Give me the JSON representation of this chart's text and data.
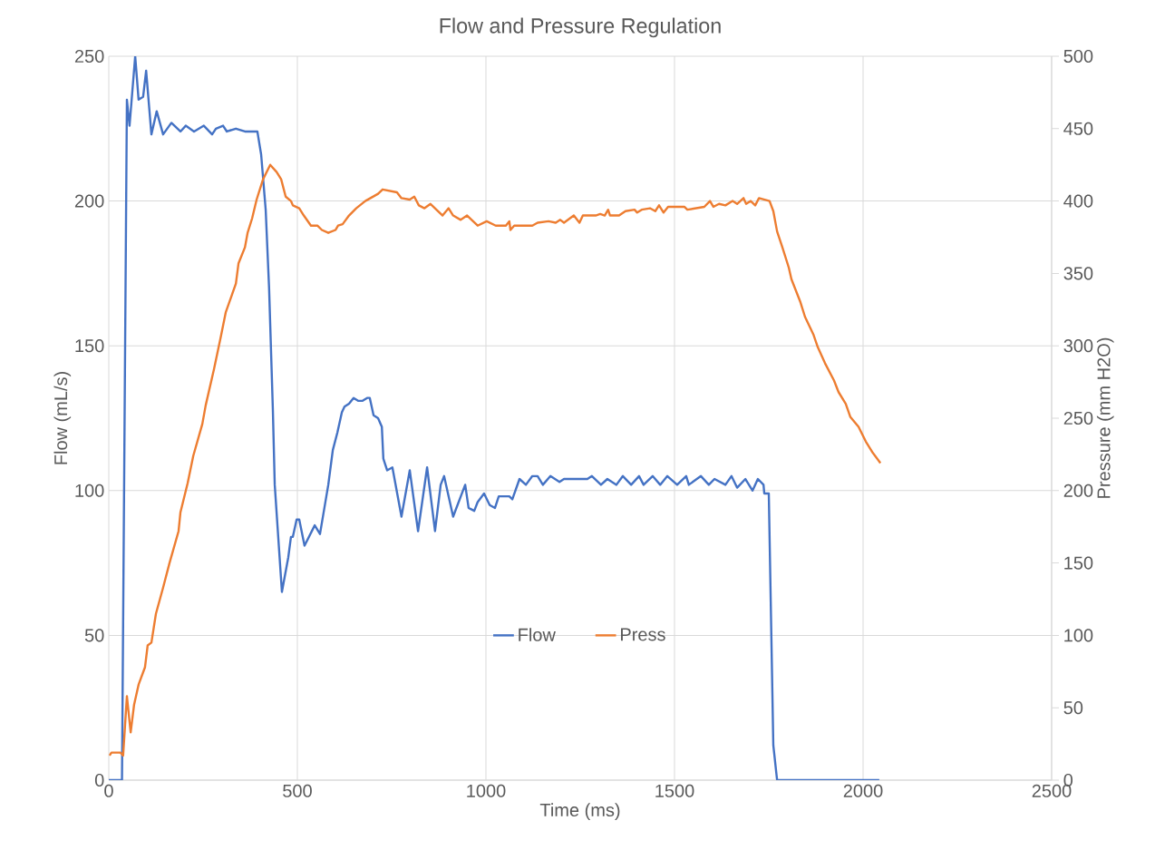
{
  "chart_data": {
    "type": "line",
    "title": "Flow and Pressure Regulation",
    "xlabel": "Time (ms)",
    "ylabel": "Flow (mL/s)",
    "y2label": "Pressure (mm H2O)",
    "xlim": [
      0,
      2500
    ],
    "xticks": [
      0,
      500,
      1000,
      1500,
      2000,
      2500
    ],
    "ylim": [
      0,
      250
    ],
    "yticks": [
      0,
      50,
      100,
      150,
      200,
      250
    ],
    "y2lim": [
      0,
      500
    ],
    "y2ticks": [
      0,
      50,
      100,
      150,
      200,
      250,
      300,
      350,
      400,
      450,
      500
    ],
    "grid": true,
    "legend": "bottom",
    "marker": "none",
    "line_style": "solid",
    "series": [
      {
        "name": "Flow",
        "color": "#4472c4",
        "axis": "y",
        "x": [
          0,
          35,
          48,
          55,
          70,
          79,
          91,
          99,
          113,
          127,
          144,
          166,
          190,
          204,
          226,
          252,
          274,
          284,
          303,
          313,
          337,
          361,
          394,
          404,
          416,
          425,
          435,
          440,
          459,
          476,
          483,
          488,
          498,
          505,
          519,
          546,
          560,
          582,
          594,
          606,
          618,
          625,
          637,
          649,
          661,
          673,
          685,
          692,
          702,
          714,
          724,
          728,
          738,
          752,
          776,
          798,
          820,
          844,
          865,
          880,
          889,
          913,
          945,
          954,
          969,
          978,
          995,
          1010,
          1024,
          1034,
          1062,
          1070,
          1089,
          1106,
          1123,
          1137,
          1151,
          1171,
          1195,
          1207,
          1269,
          1281,
          1305,
          1322,
          1346,
          1363,
          1385,
          1406,
          1418,
          1442,
          1462,
          1481,
          1507,
          1531,
          1538,
          1570,
          1591,
          1606,
          1635,
          1651,
          1666,
          1688,
          1707,
          1721,
          1736,
          1738,
          1750,
          1762,
          1772,
          2043
        ],
        "values": [
          0,
          0,
          235,
          226,
          250,
          235,
          236,
          245,
          223,
          231,
          223,
          227,
          224,
          226,
          224,
          226,
          223,
          225,
          226,
          224,
          225,
          224,
          224,
          216,
          197,
          170,
          128,
          102,
          65,
          77,
          84,
          84,
          90,
          90,
          81,
          88,
          85,
          102,
          114,
          120,
          127,
          129,
          130,
          132,
          131,
          131,
          132,
          132,
          126,
          125,
          122,
          111,
          107,
          108,
          91,
          107,
          86,
          108,
          86,
          102,
          105,
          91,
          102,
          94,
          93,
          96,
          99,
          95,
          94,
          98,
          98,
          97,
          104,
          102,
          105,
          105,
          102,
          105,
          103,
          104,
          104,
          105,
          102,
          104,
          102,
          105,
          102,
          105,
          102,
          105,
          102,
          105,
          102,
          105,
          102,
          105,
          102,
          104,
          102,
          105,
          101,
          104,
          100,
          104,
          102,
          99,
          99,
          12,
          0,
          0
        ]
      },
      {
        "name": "Press",
        "color": "#ed7d31",
        "axis": "y2",
        "x": [
          2,
          7,
          31,
          38,
          48,
          58,
          67,
          79,
          96,
          103,
          113,
          125,
          144,
          161,
          185,
          190,
          209,
          224,
          248,
          257,
          279,
          296,
          310,
          337,
          344,
          361,
          368,
          380,
          392,
          409,
          428,
          445,
          457,
          469,
          483,
          488,
          505,
          517,
          536,
          553,
          565,
          582,
          601,
          608,
          620,
          637,
          656,
          680,
          714,
          726,
          764,
          776,
          798,
          810,
          822,
          837,
          853,
          885,
          901,
          913,
          933,
          950,
          978,
          1002,
          1026,
          1053,
          1062,
          1065,
          1075,
          1123,
          1137,
          1166,
          1185,
          1197,
          1207,
          1233,
          1248,
          1257,
          1291,
          1303,
          1315,
          1324,
          1329,
          1346,
          1353,
          1370,
          1394,
          1401,
          1413,
          1435,
          1449,
          1459,
          1471,
          1483,
          1526,
          1534,
          1579,
          1594,
          1603,
          1618,
          1635,
          1654,
          1666,
          1683,
          1690,
          1702,
          1714,
          1724,
          1752,
          1762,
          1772,
          1786,
          1803,
          1810,
          1834,
          1846,
          1868,
          1880,
          1899,
          1923,
          1935,
          1954,
          1966,
          1988,
          2007,
          2026,
          2046
        ],
        "values": [
          17,
          19,
          19,
          17,
          58,
          33,
          52,
          66,
          78,
          93,
          95,
          115,
          133,
          150,
          172,
          185,
          205,
          224,
          246,
          259,
          284,
          305,
          323,
          343,
          357,
          368,
          378,
          388,
          401,
          415,
          425,
          420,
          415,
          403,
          400,
          397,
          395,
          390,
          383,
          383,
          380,
          378,
          380,
          383,
          384,
          390,
          395,
          400,
          405,
          408,
          406,
          402,
          401,
          403,
          397,
          395,
          398,
          390,
          395,
          390,
          387,
          390,
          383,
          386,
          383,
          383,
          386,
          380,
          383,
          383,
          385,
          386,
          385,
          387,
          385,
          390,
          385,
          390,
          390,
          391,
          390,
          394,
          390,
          390,
          390,
          393,
          394,
          392,
          394,
          395,
          393,
          397,
          392,
          396,
          396,
          394,
          396,
          400,
          396,
          398,
          397,
          400,
          398,
          402,
          398,
          400,
          397,
          402,
          400,
          393,
          379,
          368,
          354,
          346,
          330,
          320,
          308,
          299,
          288,
          276,
          268,
          260,
          251,
          244,
          234,
          226,
          219
        ]
      }
    ]
  }
}
